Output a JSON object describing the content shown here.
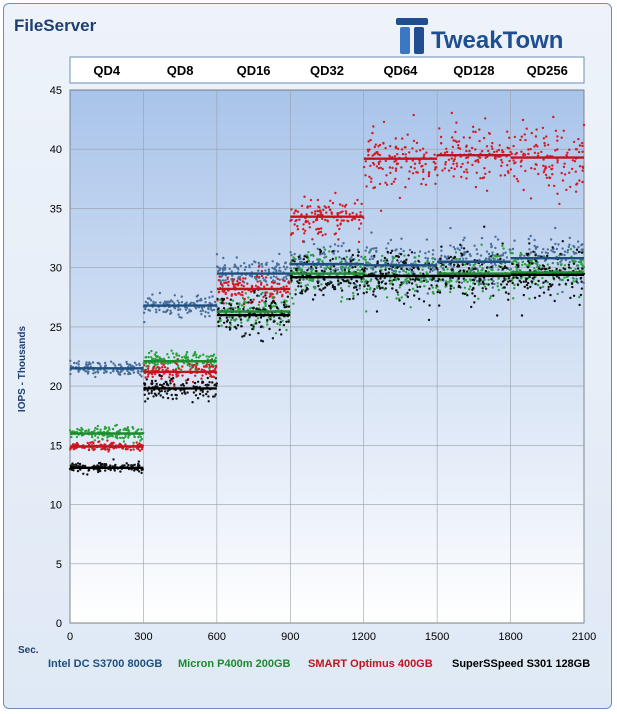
{
  "header": {
    "title": "FileServer",
    "brand": "TweakTown"
  },
  "chart_data": {
    "type": "scatter",
    "title": "FileServer",
    "xlabel": "Sec.",
    "ylabel": "IOPS - Thousands",
    "xlim": [
      0,
      2100
    ],
    "ylim": [
      0,
      45
    ],
    "x_ticks": [
      0,
      300,
      600,
      900,
      1200,
      1500,
      1800,
      2100
    ],
    "y_ticks": [
      0,
      5,
      10,
      15,
      20,
      25,
      30,
      35,
      40,
      45
    ],
    "phases": [
      {
        "label": "QD4",
        "start": 0,
        "end": 300
      },
      {
        "label": "QD8",
        "start": 300,
        "end": 600
      },
      {
        "label": "QD16",
        "start": 600,
        "end": 900
      },
      {
        "label": "QD32",
        "start": 900,
        "end": 1200
      },
      {
        "label": "QD64",
        "start": 1200,
        "end": 1500
      },
      {
        "label": "QD128",
        "start": 1500,
        "end": 1800
      },
      {
        "label": "QD256",
        "start": 1800,
        "end": 2100
      }
    ],
    "grid": true,
    "legend_position": "bottom",
    "series": [
      {
        "name": "Intel DC S3700 800GB",
        "color": "#1f4f7f",
        "dot_color": "#4a6f9a",
        "phase_means": [
          21.5,
          26.8,
          29.5,
          30.3,
          30.2,
          30.5,
          30.8
        ],
        "spread": [
          0.3,
          0.4,
          0.6,
          0.8,
          0.9,
          0.9,
          1.0
        ]
      },
      {
        "name": "Micron P400m 200GB",
        "color": "#1c8a2e",
        "dot_color": "#2aa23c",
        "phase_means": [
          16.0,
          22.1,
          26.3,
          29.5,
          29.3,
          29.5,
          29.6
        ],
        "spread": [
          0.3,
          0.4,
          0.7,
          0.9,
          0.9,
          0.9,
          0.9
        ]
      },
      {
        "name": "SMART Optimus 400GB",
        "color": "#c0141e",
        "dot_color": "#d21c24",
        "phase_means": [
          14.9,
          21.2,
          28.2,
          34.3,
          39.2,
          39.5,
          39.3
        ],
        "spread": [
          0.2,
          0.4,
          0.6,
          0.8,
          1.3,
          1.3,
          1.3
        ]
      },
      {
        "name": "SuperSSpeed S301 128GB",
        "color": "#000000",
        "dot_color": "#111111",
        "phase_means": [
          13.1,
          19.8,
          26.0,
          29.2,
          29.3,
          29.3,
          29.4
        ],
        "spread": [
          0.2,
          0.5,
          0.9,
          1.0,
          1.2,
          1.1,
          1.1
        ]
      }
    ]
  }
}
